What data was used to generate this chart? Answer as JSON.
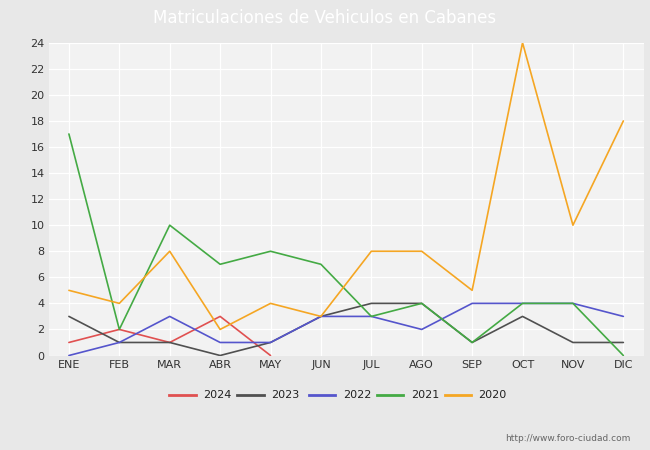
{
  "title": "Matriculaciones de Vehiculos en Cabanes",
  "months": [
    "ENE",
    "FEB",
    "MAR",
    "ABR",
    "MAY",
    "JUN",
    "JUL",
    "AGO",
    "SEP",
    "OCT",
    "NOV",
    "DIC"
  ],
  "series": {
    "2024": [
      1,
      2,
      1,
      3,
      0,
      null,
      null,
      null,
      null,
      null,
      null,
      null
    ],
    "2023": [
      3,
      1,
      1,
      0,
      1,
      3,
      4,
      4,
      1,
      3,
      1,
      1
    ],
    "2022": [
      0,
      1,
      3,
      1,
      1,
      3,
      3,
      2,
      4,
      4,
      4,
      3
    ],
    "2021": [
      17,
      2,
      10,
      7,
      8,
      7,
      3,
      4,
      1,
      4,
      4,
      0
    ],
    "2020": [
      5,
      4,
      8,
      2,
      4,
      3,
      8,
      8,
      5,
      24,
      10,
      18
    ]
  },
  "colors": {
    "2024": "#e05050",
    "2023": "#505050",
    "2022": "#5555cc",
    "2021": "#44aa44",
    "2020": "#f5a623"
  },
  "ylim": [
    0,
    24
  ],
  "yticks": [
    0,
    2,
    4,
    6,
    8,
    10,
    12,
    14,
    16,
    18,
    20,
    22,
    24
  ],
  "title_fontsize": 12,
  "tick_fontsize": 8,
  "legend_fontsize": 8,
  "header_bg": "#5080c0",
  "plot_bg_color": "#e8e8e8",
  "chart_bg_color": "#f2f2f2",
  "outer_bg": "#d8d8d8",
  "footer_text": "http://www.foro-ciudad.com",
  "watermark": "foro-ciudad.com"
}
